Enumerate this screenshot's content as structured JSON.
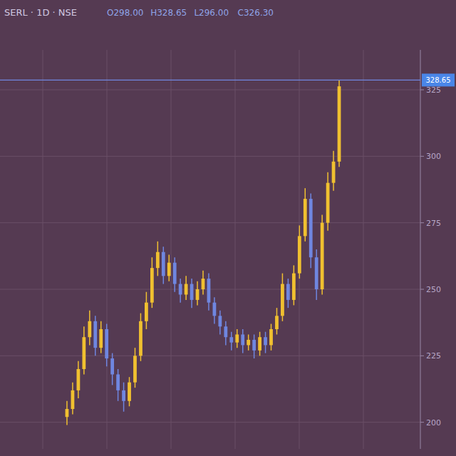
{
  "chart_data": {
    "type": "candlestick",
    "title": "SERL · 1D · NSE",
    "ohlc_labels": [
      "O298.00",
      "H328.65",
      "L296.00",
      "C326.30"
    ],
    "categories": [
      null,
      null,
      null,
      null,
      null,
      null,
      null,
      null,
      null,
      null,
      null,
      null,
      null,
      null,
      null,
      null,
      null,
      null,
      null,
      null,
      null,
      null,
      null,
      null,
      null,
      null,
      null,
      null,
      null,
      null,
      null,
      null,
      null,
      null,
      null,
      null,
      null,
      null,
      null,
      null,
      null,
      null,
      null,
      null,
      null,
      null,
      null,
      null,
      null
    ],
    "open": [
      202,
      205,
      212,
      220,
      232,
      238,
      228,
      235,
      224,
      218,
      212,
      208,
      215,
      225,
      238,
      245,
      258,
      264,
      255,
      260,
      252,
      248,
      252,
      246,
      250,
      254,
      245,
      240,
      236,
      232,
      230,
      233,
      229,
      231,
      227,
      232,
      229,
      235,
      240,
      252,
      246,
      256,
      270,
      284,
      262,
      250,
      275,
      290,
      298
    ],
    "high": [
      208,
      215,
      223,
      236,
      242,
      240,
      238,
      237,
      226,
      220,
      215,
      217,
      228,
      241,
      249,
      262,
      268,
      266,
      263,
      262,
      254,
      255,
      254,
      253,
      257,
      256,
      247,
      242,
      238,
      234,
      235,
      235,
      233,
      233,
      234,
      234,
      237,
      243,
      256,
      254,
      259,
      274,
      288,
      286,
      265,
      278,
      294,
      302,
      328.65
    ],
    "low": [
      199,
      203,
      209,
      218,
      229,
      225,
      226,
      221,
      214,
      208,
      204,
      206,
      213,
      223,
      235,
      243,
      255,
      252,
      253,
      249,
      245,
      246,
      243,
      244,
      248,
      242,
      237,
      233,
      229,
      227,
      228,
      226,
      227,
      224,
      225,
      226,
      227,
      233,
      238,
      243,
      244,
      254,
      268,
      258,
      246,
      248,
      272,
      287,
      296
    ],
    "close": [
      205,
      212,
      220,
      232,
      238,
      228,
      235,
      224,
      218,
      212,
      208,
      215,
      225,
      238,
      245,
      258,
      264,
      255,
      260,
      252,
      248,
      252,
      246,
      250,
      254,
      245,
      240,
      236,
      232,
      230,
      233,
      229,
      231,
      227,
      232,
      229,
      235,
      240,
      252,
      246,
      256,
      270,
      284,
      262,
      250,
      275,
      290,
      298,
      326.3
    ],
    "ylim": [
      190,
      340
    ],
    "yticks": [
      200,
      225,
      250,
      275,
      300,
      325
    ],
    "grid": true,
    "tick_labels": "y",
    "annotations": [
      {
        "value": 328.65,
        "label": "328.65"
      }
    ]
  }
}
